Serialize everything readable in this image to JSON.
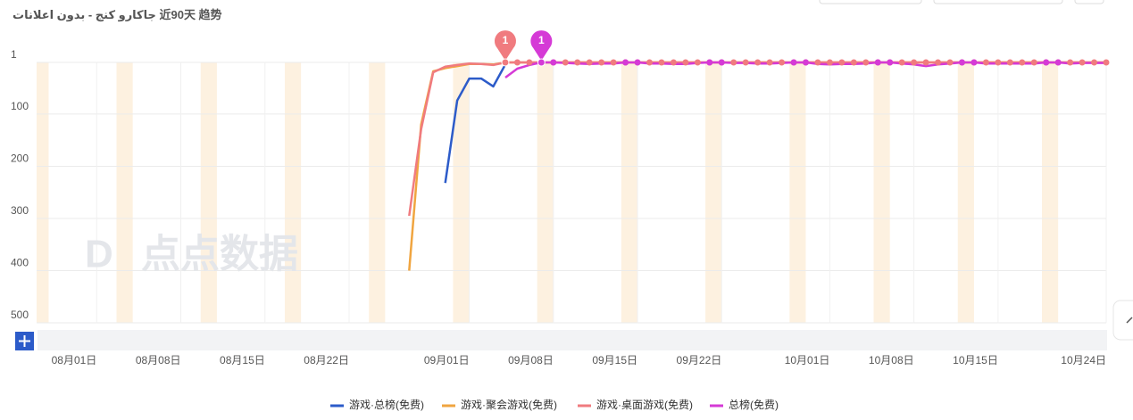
{
  "chart_data": {
    "type": "line",
    "title": "جاكارو كنج - بدون اعلانات 近90天 趋势",
    "watermark": "点点数据",
    "categories": [
      null,
      null,
      null,
      null,
      null,
      "08月01日",
      null,
      null,
      null,
      null,
      null,
      null,
      "08月08日",
      null,
      null,
      null,
      null,
      null,
      null,
      "08月15日",
      null,
      null,
      null,
      null,
      null,
      null,
      "08月22日",
      null,
      null,
      null,
      null,
      null,
      null,
      null,
      null,
      null,
      "09月01日",
      null,
      null,
      null,
      null,
      null,
      null,
      "09月08日",
      null,
      null,
      null,
      null,
      null,
      null,
      "09月15日",
      null,
      null,
      null,
      null,
      null,
      null,
      "09月22日",
      null,
      null,
      null,
      null,
      null,
      null,
      null,
      null,
      "10月01日",
      null,
      null,
      null,
      null,
      null,
      null,
      "10月08日",
      null,
      null,
      null,
      null,
      null,
      null,
      "10月15日",
      null,
      null,
      null,
      null,
      null,
      null,
      null,
      null,
      "10月24日"
    ],
    "series": [
      {
        "name": "游戏·总榜(免费)",
        "color": "#2c5bc9",
        "values": [
          null,
          null,
          null,
          null,
          null,
          null,
          null,
          null,
          null,
          null,
          null,
          null,
          null,
          null,
          null,
          null,
          null,
          null,
          null,
          null,
          null,
          null,
          null,
          null,
          null,
          null,
          null,
          null,
          null,
          null,
          null,
          null,
          null,
          null,
          232,
          74,
          32,
          32,
          47,
          5,
          null,
          null,
          null,
          null,
          null,
          null,
          null,
          null,
          null,
          null,
          null,
          null,
          null,
          null,
          null,
          null,
          null,
          null,
          null,
          null,
          null,
          null,
          null,
          null,
          null,
          null,
          null,
          null,
          null,
          null,
          null,
          null,
          null,
          null,
          null,
          null,
          null,
          null,
          null,
          null,
          null,
          null,
          null,
          null,
          null,
          null,
          null,
          null,
          null,
          null
        ]
      },
      {
        "name": "游戏·聚会游戏(免费)",
        "color": "#f0a540",
        "values": [
          null,
          null,
          null,
          null,
          null,
          null,
          null,
          null,
          null,
          null,
          null,
          null,
          null,
          null,
          null,
          null,
          null,
          null,
          null,
          null,
          null,
          null,
          null,
          null,
          null,
          null,
          null,
          null,
          null,
          null,
          null,
          400,
          120,
          18,
          12,
          8,
          4,
          4,
          5,
          1,
          1,
          1,
          1,
          1,
          1,
          1,
          1,
          1,
          1,
          1,
          1,
          1,
          1,
          1,
          1,
          1,
          1,
          1,
          1,
          1,
          1,
          1,
          1,
          1,
          1,
          1,
          1,
          1,
          1,
          1,
          1,
          1,
          1,
          1,
          1,
          1,
          1,
          1,
          1,
          1,
          1,
          1,
          1,
          1,
          1,
          1,
          1,
          1,
          1,
          1
        ]
      },
      {
        "name": "游戏·桌面游戏(免费)",
        "color": "#f07b7f",
        "pin": true,
        "values": [
          null,
          null,
          null,
          null,
          null,
          null,
          null,
          null,
          null,
          null,
          null,
          null,
          null,
          null,
          null,
          null,
          null,
          null,
          null,
          null,
          null,
          null,
          null,
          null,
          null,
          null,
          null,
          null,
          null,
          null,
          null,
          295,
          129,
          20,
          9,
          6,
          3,
          4,
          6,
          1,
          1,
          1,
          1,
          1,
          1,
          1,
          1,
          1,
          1,
          1,
          1,
          1,
          1,
          1,
          1,
          1,
          1,
          1,
          1,
          1,
          1,
          1,
          1,
          1,
          1,
          1,
          1,
          1,
          1,
          1,
          1,
          1,
          1,
          1,
          1,
          1,
          1,
          1,
          1,
          1,
          1,
          1,
          1,
          1,
          1,
          1,
          1,
          1,
          1,
          1
        ]
      },
      {
        "name": "总榜(免费)",
        "color": "#d53ad6",
        "pin": true,
        "values": [
          null,
          null,
          null,
          null,
          null,
          null,
          null,
          null,
          null,
          null,
          null,
          null,
          null,
          null,
          null,
          null,
          null,
          null,
          null,
          null,
          null,
          null,
          null,
          null,
          null,
          null,
          null,
          null,
          null,
          null,
          null,
          null,
          null,
          null,
          null,
          null,
          null,
          null,
          null,
          30,
          13,
          6,
          1,
          1,
          2,
          3,
          4,
          3,
          3,
          1,
          1,
          3,
          3,
          4,
          4,
          2,
          1,
          1,
          2,
          2,
          3,
          3,
          2,
          1,
          1,
          4,
          5,
          4,
          4,
          3,
          1,
          1,
          3,
          5,
          8,
          5,
          3,
          1,
          1,
          3,
          3,
          3,
          3,
          3,
          1,
          1,
          3,
          2,
          2,
          2
        ]
      }
    ],
    "ylim": [
      1,
      500
    ],
    "y_inverted": true,
    "yticks": [
      1,
      100,
      200,
      300,
      400,
      500
    ],
    "grid": true
  }
}
